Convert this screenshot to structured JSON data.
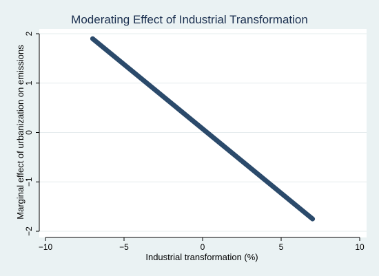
{
  "chart_data": {
    "type": "line",
    "title": "Moderating Effect of Industrial Transformation",
    "xlabel": "Industrial transformation (%)",
    "ylabel": "Marginal effect of urbanization on emissions",
    "xlim": [
      -10,
      10
    ],
    "ylim": [
      -2,
      2
    ],
    "xticks": [
      -10,
      -5,
      0,
      5,
      10
    ],
    "yticks": [
      -2,
      -1,
      0,
      1,
      2
    ],
    "xtick_labels": [
      "−10",
      "−5",
      "0",
      "5",
      "10"
    ],
    "ytick_labels": [
      "−2",
      "−1",
      "0",
      "1",
      "2"
    ],
    "grid": true,
    "series": [
      {
        "x": [
          -7,
          7
        ],
        "y": [
          1.9,
          -1.75
        ]
      }
    ],
    "colors": {
      "background": "#eaf2f3",
      "plot_background": "#ffffff",
      "line": "#2b4a6b",
      "title": "#1a2f4f",
      "grid": "#e6ecee"
    }
  }
}
